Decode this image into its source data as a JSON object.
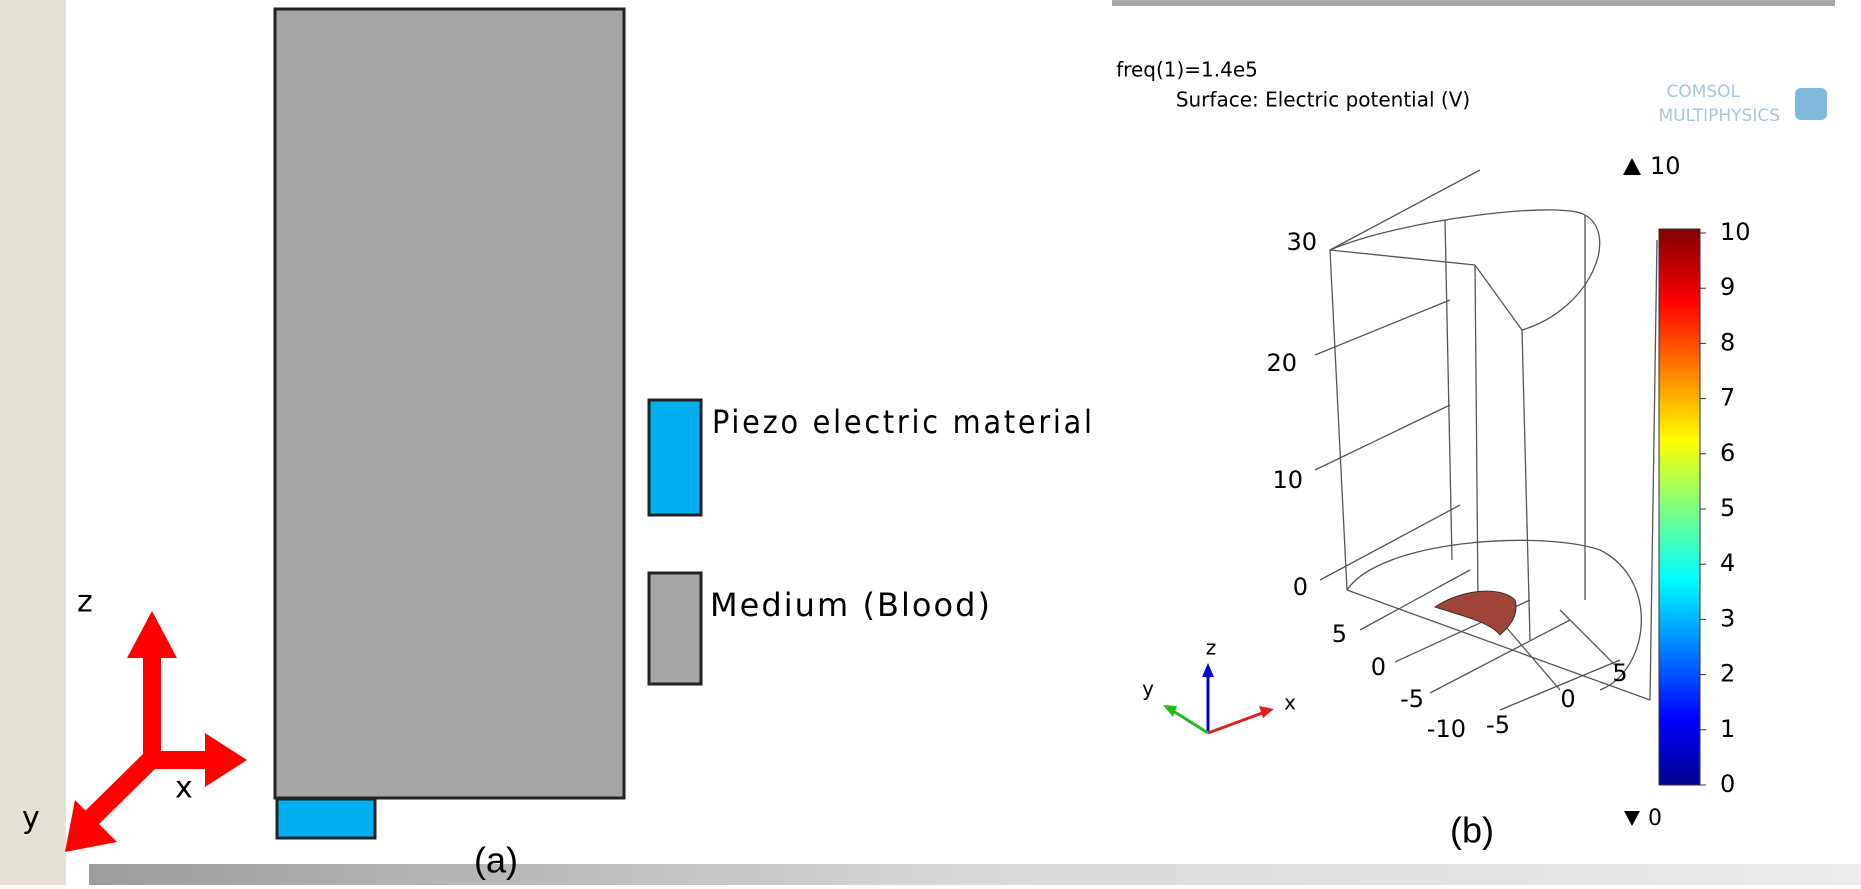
{
  "panel_a": {
    "legend": [
      "Piezo electric material",
      "Medium (Blood)"
    ],
    "axes": {
      "z": "z",
      "x": "x",
      "y": "y"
    },
    "caption": "(a)"
  },
  "panel_b": {
    "title": "freq(1)=1.4e5",
    "subtitle": "Surface: Electric potential (V)",
    "logo": [
      "COMSOL",
      "MULTIPHYSICS"
    ],
    "max_label": 10,
    "min_label": 0,
    "colorbar_ticks": [
      10,
      9,
      8,
      7,
      6,
      5,
      4,
      3,
      2,
      1,
      0
    ],
    "z_ticks": [
      30,
      20,
      10,
      0
    ],
    "y_ticks": [
      5,
      0,
      -5,
      -10
    ],
    "x_ticks": [
      -5,
      0,
      5
    ],
    "triad": {
      "z": "z",
      "y": "y",
      "x": "x"
    },
    "caption": "(b)"
  }
}
